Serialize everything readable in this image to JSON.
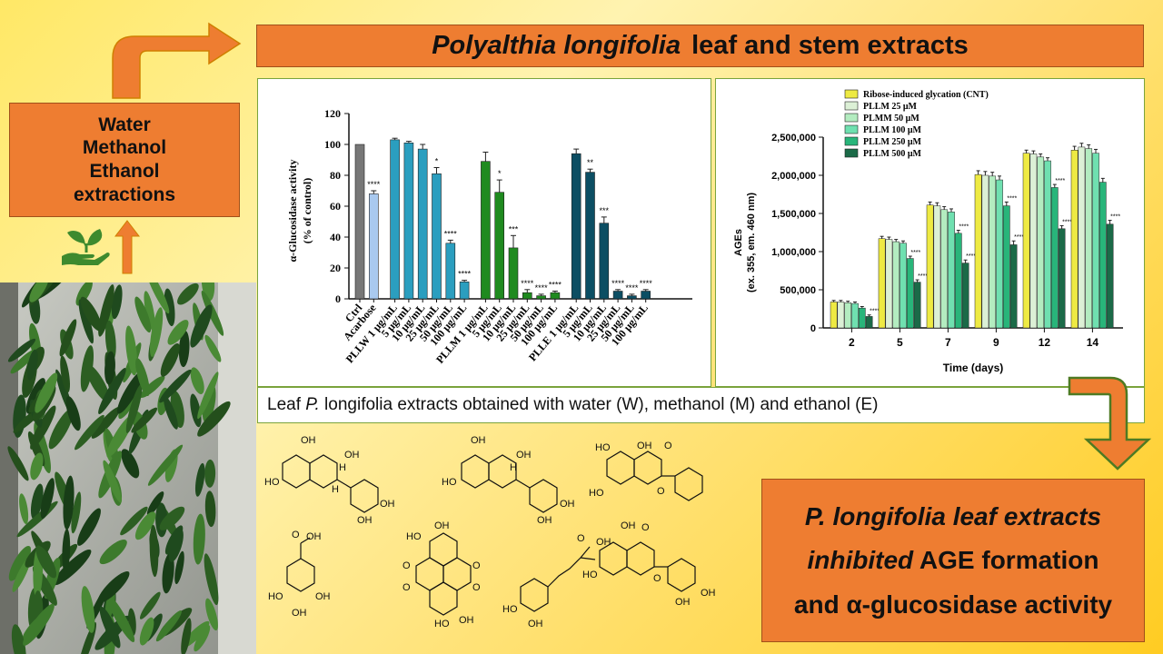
{
  "title": {
    "italic": "Polyalthia longifolia",
    "rest": "leaf and stem extracts"
  },
  "solvents": [
    "Water",
    "Methanol",
    "Ethanol",
    "extractions"
  ],
  "caption": {
    "prefix": "Leaf ",
    "species": "P.",
    "species2": " longifolia",
    "rest": " extracts obtained with water (W), methanol (M) and ethanol (E)"
  },
  "conclusion": {
    "line1": "P. longifolia leaf extracts",
    "line2_italic": "inhibited",
    "line2_rest": " AGE formation",
    "line3": "and α-glucosidase activity"
  },
  "icons": [
    "arrow-up-right-icon",
    "hand-plant-icon",
    "arrow-up-icon",
    "arrow-down-icon"
  ],
  "colors": {
    "box_orange": "#ee7d31",
    "arrow_orange": "#ee7d31",
    "arrow_outline_green": "#4e7a23"
  },
  "chart_data": [
    {
      "type": "bar",
      "title": "",
      "xlabel": "",
      "ylabel": "α-Glucosidase activity",
      "ylabel2": "(% of control)",
      "ylim": [
        0,
        120
      ],
      "yticks": [
        0,
        20,
        40,
        60,
        80,
        100,
        120
      ],
      "categories": [
        "Ctrl",
        "Acarbose",
        "PLLW 1 μg/mL",
        "5 μg/mL",
        "10 μg/mL",
        "25 μg/mL",
        "50 μg/mL",
        "100 μg/mL",
        "PLLM 1 μg/mL",
        "5 μg/mL",
        "10 μg/mL",
        "25 μg/mL",
        "50 μg/mL",
        "100 μg/mL",
        "PLLE 1 μg/mL",
        "5 μg/mL",
        "10 μg/mL",
        "25 μg/mL",
        "50 μg/mL",
        "100 μg/mL"
      ],
      "values": [
        100,
        68,
        103,
        101,
        97,
        81,
        36,
        11,
        89,
        69,
        33,
        4,
        2,
        4,
        94,
        82,
        49,
        5,
        2,
        5
      ],
      "errors": [
        0,
        2,
        1,
        1,
        3,
        4,
        2,
        1,
        6,
        8,
        8,
        2,
        1,
        1,
        3,
        2,
        4,
        1,
        1,
        1
      ],
      "significance": [
        "",
        "****",
        "",
        "",
        "",
        "*",
        "****",
        "****",
        "",
        "*",
        "***",
        "****",
        "****",
        "****",
        "",
        "**",
        "***",
        "****",
        "****",
        "****"
      ],
      "colors": [
        "#777777",
        "#a9c9ef",
        "#2b9ebf",
        "#2b9ebf",
        "#2b9ebf",
        "#2b9ebf",
        "#2b9ebf",
        "#2b9ebf",
        "#1f8a1f",
        "#1f8a1f",
        "#1f8a1f",
        "#1f8a1f",
        "#1f8a1f",
        "#1f8a1f",
        "#0c4e63",
        "#0c4e63",
        "#0c4e63",
        "#0c4e63",
        "#0c4e63",
        "#0c4e63"
      ],
      "grid": false
    },
    {
      "type": "bar",
      "title": "",
      "xlabel": "Time (days)",
      "ylabel": "AGEs",
      "ylabel2": "(ex. 355, em. 460 nm)",
      "ylim": [
        0,
        2500000
      ],
      "yticks": [
        0,
        500000,
        1000000,
        1500000,
        2000000,
        2500000
      ],
      "ytick_labels": [
        "0",
        "500,000",
        "1,000,000",
        "1,500,000",
        "2,000,000",
        "2,500,000"
      ],
      "categories": [
        "2",
        "5",
        "7",
        "9",
        "12",
        "14"
      ],
      "legend_position": "top",
      "series": [
        {
          "name": "Ribose-induced glycation (CNT)",
          "color": "#eeea43",
          "values": [
            340000,
            1170000,
            1610000,
            2010000,
            2290000,
            2330000
          ],
          "sig": [
            "",
            "",
            "",
            "",
            "",
            ""
          ]
        },
        {
          "name": "PLLM  25 μM",
          "color": "#dcf0d6",
          "values": [
            340000,
            1160000,
            1600000,
            2000000,
            2280000,
            2370000
          ],
          "sig": [
            "",
            "",
            "",
            "",
            "",
            ""
          ]
        },
        {
          "name": "PLMM 50 μM",
          "color": "#b3ecc0",
          "values": [
            330000,
            1130000,
            1550000,
            1990000,
            2240000,
            2350000
          ],
          "sig": [
            "",
            "",
            "",
            "",
            "",
            ""
          ]
        },
        {
          "name": "PLLM 100 μM",
          "color": "#6fe0b0",
          "values": [
            320000,
            1110000,
            1520000,
            1940000,
            2190000,
            2290000
          ],
          "sig": [
            "",
            "",
            "",
            "",
            "",
            ""
          ]
        },
        {
          "name": "PLLM 250 μM",
          "color": "#28b57a",
          "values": [
            260000,
            910000,
            1240000,
            1600000,
            1840000,
            1910000
          ],
          "sig": [
            "",
            "****",
            "****",
            "****",
            "****",
            ""
          ]
        },
        {
          "name": "PLLM 500 μM",
          "color": "#1b6a48",
          "values": [
            150000,
            600000,
            850000,
            1090000,
            1300000,
            1360000
          ],
          "sig": [
            "****",
            "****",
            "****",
            "****",
            "****",
            "****"
          ]
        }
      ],
      "errors": [
        20000,
        30000,
        40000,
        50000,
        40000,
        50000
      ],
      "grid": false
    }
  ],
  "structure_labels": {
    "m1": [
      "OH",
      "OH",
      "HO",
      "OH",
      "OH",
      "H",
      "H"
    ],
    "m2": [
      "OH",
      "OH",
      "HO",
      "OH",
      "OH",
      "H"
    ],
    "m3": [
      "HO",
      "OH",
      "O",
      "HO",
      "O"
    ],
    "m4": [
      "OH",
      "O",
      "HO",
      "OH",
      "OH"
    ],
    "m5": [
      "OH",
      "HO",
      "O",
      "O",
      "O",
      "O",
      "OH",
      "HO"
    ],
    "m6": [
      "O",
      "OH",
      "HO",
      "OH"
    ],
    "m7": [
      "OH",
      "O",
      "HO",
      "O",
      "OH",
      "OH"
    ]
  }
}
